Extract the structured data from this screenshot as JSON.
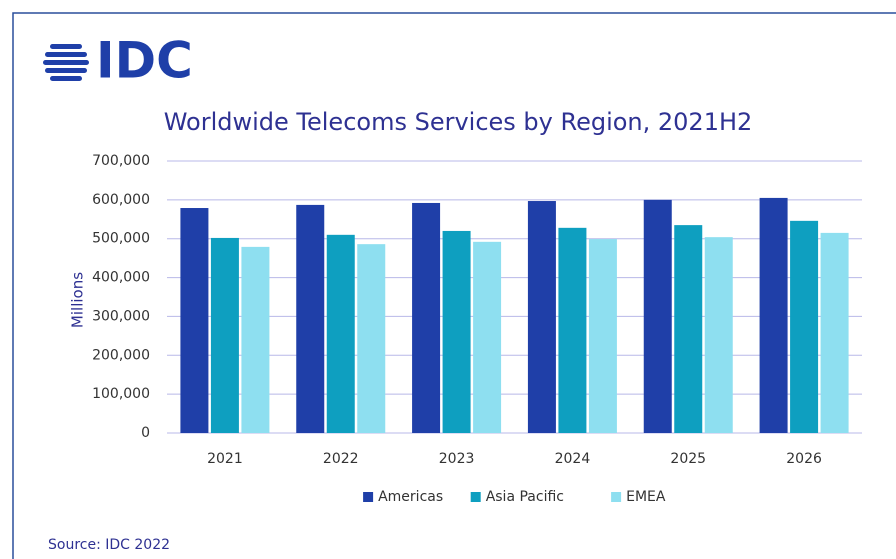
{
  "chart_data": {
    "type": "bar",
    "logo": "IDC",
    "title": "Worldwide Telecoms Services by Region, 2021H2",
    "y_label": "Millions",
    "source": "Source: IDC 2022",
    "categories": [
      "2021",
      "2022",
      "2023",
      "2024",
      "2025",
      "2026"
    ],
    "series": [
      {
        "name": "Americas",
        "color": "#1f3fa8",
        "values": [
          579000,
          587000,
          592000,
          597000,
          600000,
          605000
        ]
      },
      {
        "name": "Asia Pacific",
        "color": "#0e9fc0",
        "values": [
          502000,
          510000,
          520000,
          528000,
          535000,
          546000
        ]
      },
      {
        "name": "EMEA",
        "color": "#8edff0",
        "values": [
          479000,
          486000,
          492000,
          499000,
          504000,
          515000
        ]
      }
    ],
    "ylim": [
      0,
      700000
    ],
    "yticks": [
      0,
      {
        "value": 100000,
        "label": "100,000"
      },
      {
        "value": 200000,
        "label": "200,000"
      },
      {
        "value": 300000,
        "label": "300,000"
      },
      {
        "value": 400000,
        "label": "400,000"
      },
      {
        "value": 500000,
        "label": "500,000"
      },
      {
        "value": 600000,
        "label": "600,000"
      },
      {
        "value": 700000,
        "label": "700,000"
      }
    ],
    "grid": true,
    "legend": "bottom"
  }
}
